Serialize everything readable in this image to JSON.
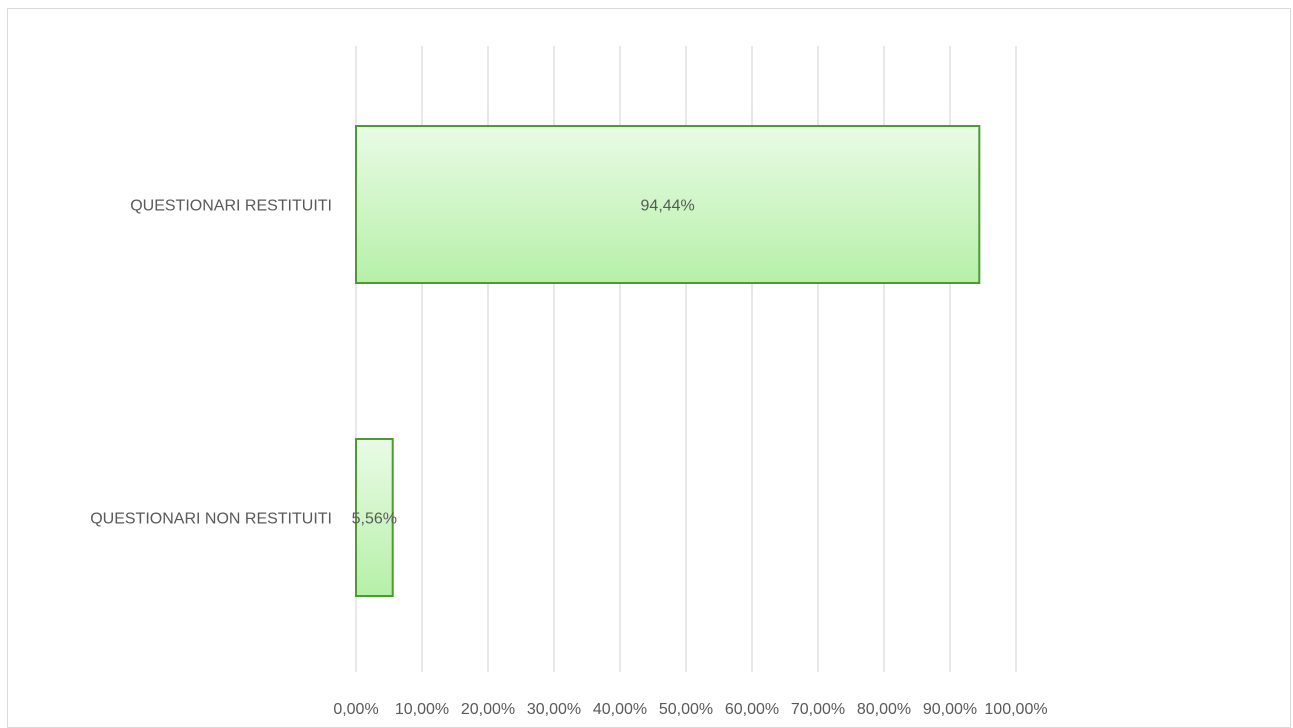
{
  "chart_data": {
    "type": "bar",
    "orientation": "horizontal",
    "categories": [
      "QUESTIONARI RESTITUITI",
      "QUESTIONARI NON RESTITUITI"
    ],
    "values": [
      94.44,
      5.56
    ],
    "data_labels": [
      "94,44%",
      "5,56%"
    ],
    "xlim": [
      0,
      100
    ],
    "x_ticks": [
      0,
      10,
      20,
      30,
      40,
      50,
      60,
      70,
      80,
      90,
      100
    ],
    "x_tick_labels": [
      "0,00%",
      "10,00%",
      "20,00%",
      "30,00%",
      "40,00%",
      "50,00%",
      "60,00%",
      "70,00%",
      "80,00%",
      "90,00%",
      "100,00%"
    ],
    "grid": "vertical",
    "legend": "none",
    "colors": {
      "bar_fill_top": "#e9fbe6",
      "bar_fill_bottom": "#b6f0a8",
      "bar_border": "#4e9a32",
      "grid": "#d9d9d9",
      "text": "#595959"
    }
  }
}
